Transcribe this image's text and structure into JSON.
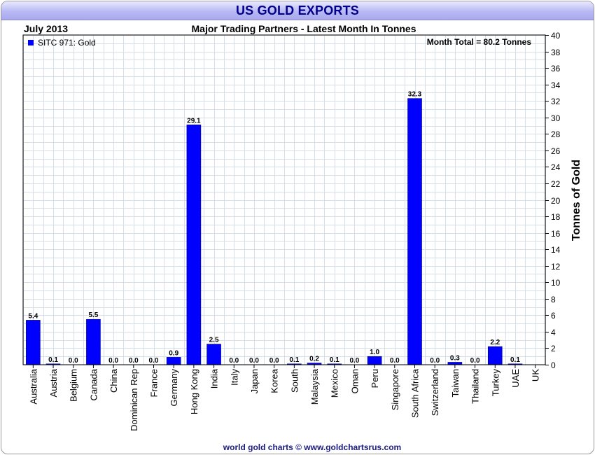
{
  "header": {
    "title": "US GOLD EXPORTS"
  },
  "chart_data": {
    "type": "bar",
    "period": "July 2013",
    "subtitle": "Major Trading Partners - Latest Month In Tonnes",
    "legend": "SITC 971: Gold",
    "legend_position": "top-left",
    "annotation": "Month Total = 80.2 Tonnes",
    "ylabel": "Tonnes of Gold",
    "xlabel": "",
    "ylim": [
      0,
      40
    ],
    "ytick_step": 2,
    "grid": true,
    "bar_color": "#0000ff",
    "categories": [
      "Australia",
      "Austria",
      "Belgium",
      "Canada",
      "China",
      "Dominican Rep",
      "France",
      "Germany",
      "Hong Kong",
      "India",
      "Italy",
      "Japan",
      "Korea",
      "South",
      "Malaysia",
      "Mexico",
      "Oman",
      "Peru",
      "Singapore",
      "South Africa",
      "Switzerland",
      "Taiwan",
      "Thailand",
      "Turkey",
      "UAE",
      "UK"
    ],
    "values": [
      5.4,
      0.1,
      0.0,
      5.5,
      0.0,
      0.0,
      0.0,
      0.9,
      29.1,
      2.5,
      0.0,
      0.0,
      0.0,
      0.1,
      0.2,
      0.1,
      0.0,
      1.0,
      0.0,
      32.3,
      0.0,
      0.3,
      0.0,
      2.2,
      0.1,
      null
    ],
    "value_labels": [
      "5.4",
      "0.1",
      "0.0",
      "5.5",
      "0.0",
      "0.0",
      "0.0",
      "0.9",
      "29.1",
      "2.5",
      "0.0",
      "0.0",
      "0.0",
      "0.1",
      "0.2",
      "0.1",
      "0.0",
      "1.0",
      "0.0",
      "32.3",
      "0.0",
      "0.3",
      "0.0",
      "2.2",
      "0.1",
      ""
    ]
  },
  "footer": {
    "credit": "world gold charts © www.goldchartsrus.com"
  }
}
